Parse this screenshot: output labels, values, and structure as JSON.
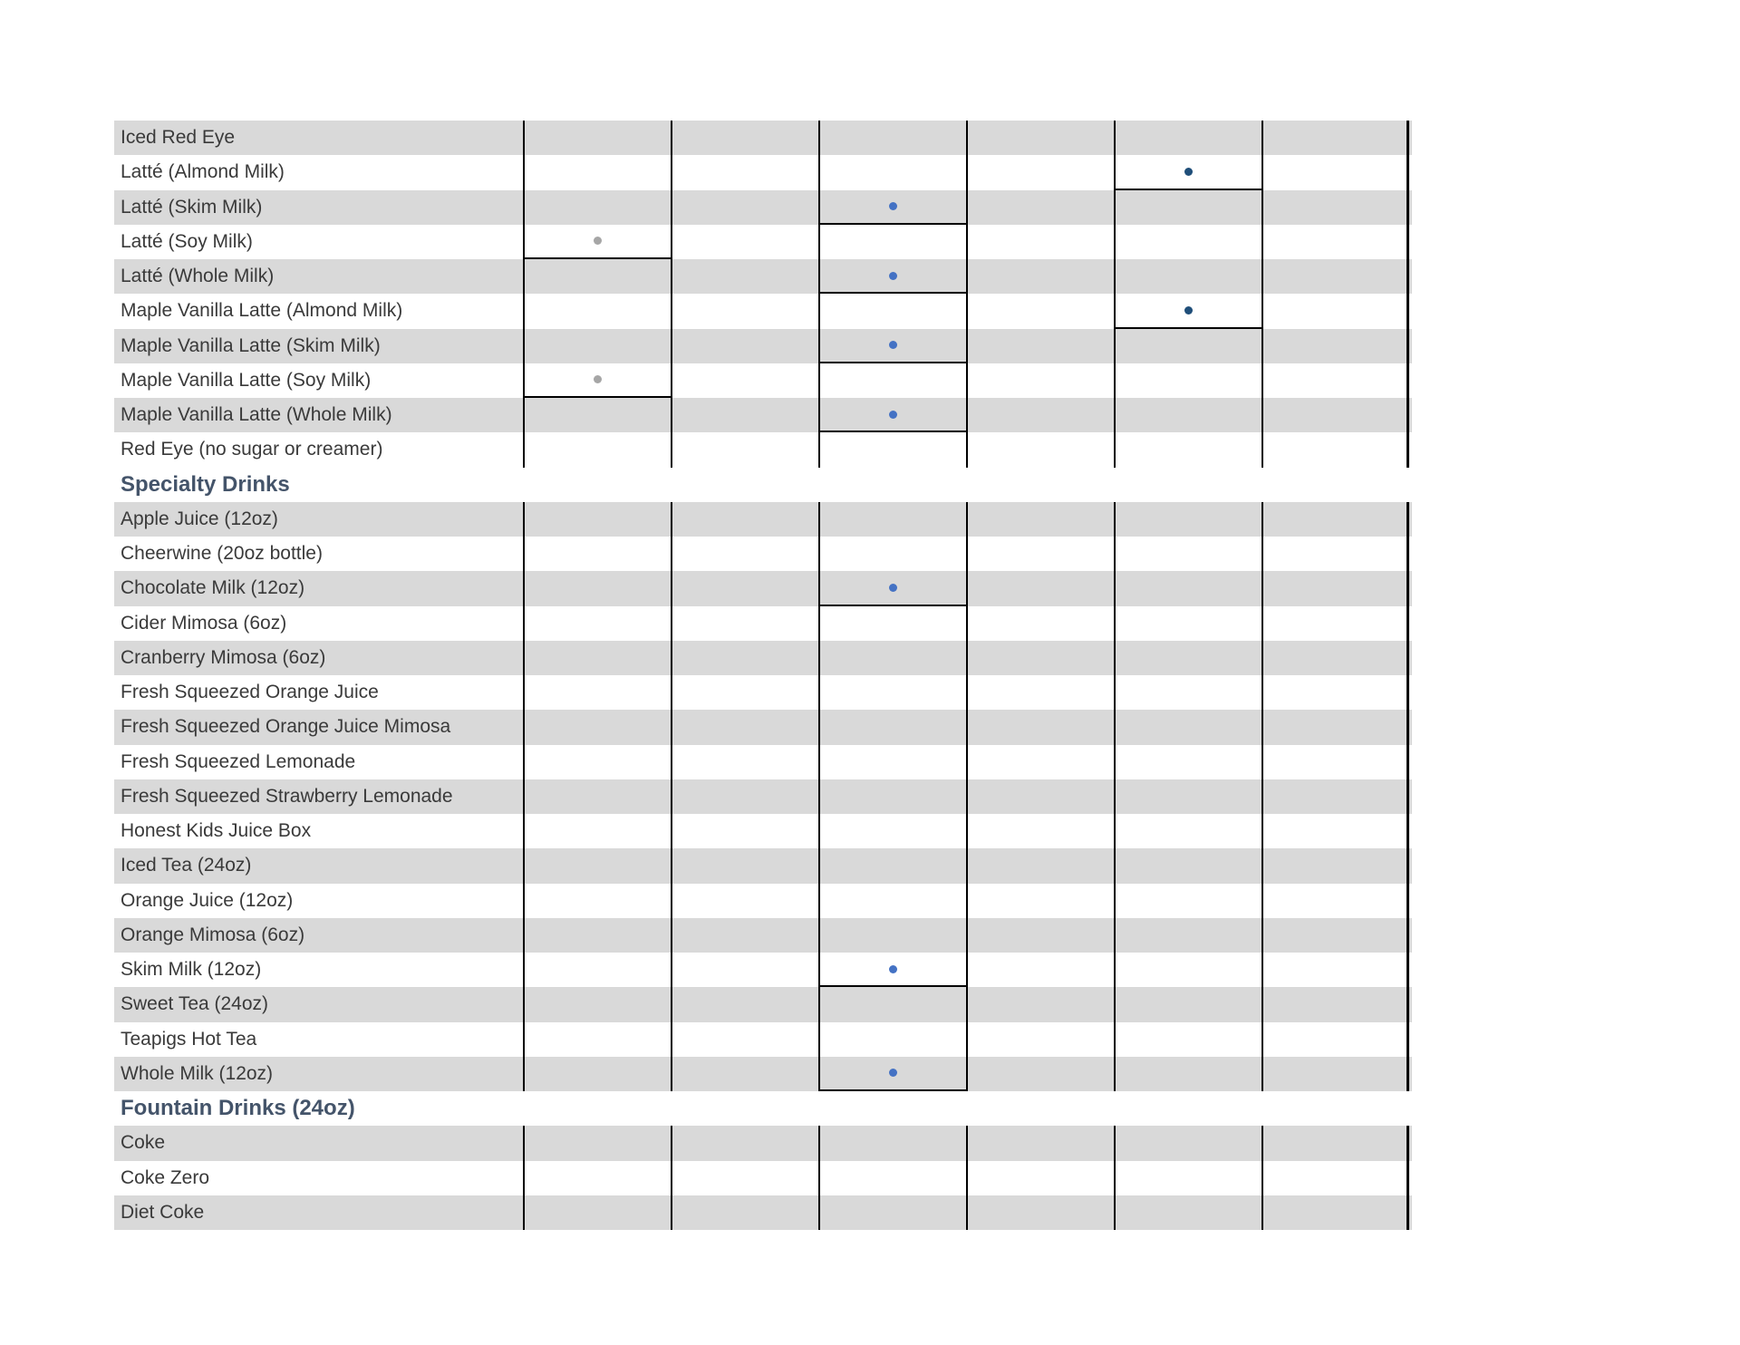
{
  "table": {
    "description": "Drink availability grid (cropped spreadsheet view)",
    "data_column_count": 6,
    "colors": {
      "row_stripe": "#D9D9D9",
      "row_text": "#3A3A3A",
      "section_text": "#44546A",
      "grid_line": "#000000",
      "dot_navy": "#1F4E79",
      "dot_blue": "#4472C4",
      "dot_gray": "#A6A6A6"
    },
    "rows": [
      {
        "label": "Iced Red Eye",
        "type": "item",
        "shaded": true,
        "dot": null
      },
      {
        "label": "Latté (Almond Milk)",
        "type": "item",
        "shaded": false,
        "dot": {
          "column": 4,
          "color": "navy"
        }
      },
      {
        "label": "Latté (Skim Milk)",
        "type": "item",
        "shaded": true,
        "dot": {
          "column": 2,
          "color": "blue"
        }
      },
      {
        "label": "Latté (Soy Milk)",
        "type": "item",
        "shaded": false,
        "dot": {
          "column": 0,
          "color": "gray"
        }
      },
      {
        "label": "Latté (Whole Milk)",
        "type": "item",
        "shaded": true,
        "dot": {
          "column": 2,
          "color": "blue"
        }
      },
      {
        "label": "Maple Vanilla Latte (Almond Milk)",
        "type": "item",
        "shaded": false,
        "dot": {
          "column": 4,
          "color": "navy"
        }
      },
      {
        "label": "Maple Vanilla Latte (Skim Milk)",
        "type": "item",
        "shaded": true,
        "dot": {
          "column": 2,
          "color": "blue"
        }
      },
      {
        "label": "Maple Vanilla Latte (Soy Milk)",
        "type": "item",
        "shaded": false,
        "dot": {
          "column": 0,
          "color": "gray"
        }
      },
      {
        "label": "Maple Vanilla Latte (Whole Milk)",
        "type": "item",
        "shaded": true,
        "dot": {
          "column": 2,
          "color": "blue"
        }
      },
      {
        "label": "Red Eye (no sugar or creamer)",
        "type": "item",
        "shaded": false,
        "dot": null
      },
      {
        "label": "Specialty Drinks",
        "type": "section",
        "shaded": false,
        "dot": null
      },
      {
        "label": "Apple Juice (12oz)",
        "type": "item",
        "shaded": true,
        "dot": null
      },
      {
        "label": "Cheerwine (20oz bottle)",
        "type": "item",
        "shaded": false,
        "dot": null
      },
      {
        "label": "Chocolate Milk (12oz)",
        "type": "item",
        "shaded": true,
        "dot": {
          "column": 2,
          "color": "blue"
        }
      },
      {
        "label": "Cider Mimosa (6oz)",
        "type": "item",
        "shaded": false,
        "dot": null
      },
      {
        "label": "Cranberry Mimosa (6oz)",
        "type": "item",
        "shaded": true,
        "dot": null
      },
      {
        "label": "Fresh Squeezed Orange Juice",
        "type": "item",
        "shaded": false,
        "dot": null
      },
      {
        "label": "Fresh Squeezed Orange Juice Mimosa",
        "type": "item",
        "shaded": true,
        "dot": null
      },
      {
        "label": "Fresh Squeezed Lemonade",
        "type": "item",
        "shaded": false,
        "dot": null
      },
      {
        "label": "Fresh Squeezed Strawberry Lemonade",
        "type": "item",
        "shaded": true,
        "dot": null
      },
      {
        "label": "Honest Kids Juice Box",
        "type": "item",
        "shaded": false,
        "dot": null
      },
      {
        "label": "Iced Tea (24oz)",
        "type": "item",
        "shaded": true,
        "dot": null
      },
      {
        "label": "Orange Juice (12oz)",
        "type": "item",
        "shaded": false,
        "dot": null
      },
      {
        "label": "Orange Mimosa (6oz)",
        "type": "item",
        "shaded": true,
        "dot": null
      },
      {
        "label": "Skim Milk (12oz)",
        "type": "item",
        "shaded": false,
        "dot": {
          "column": 2,
          "color": "blue"
        }
      },
      {
        "label": "Sweet Tea (24oz)",
        "type": "item",
        "shaded": true,
        "dot": null
      },
      {
        "label": "Teapigs Hot Tea",
        "type": "item",
        "shaded": false,
        "dot": null
      },
      {
        "label": "Whole Milk (12oz)",
        "type": "item",
        "shaded": true,
        "dot": {
          "column": 2,
          "color": "blue"
        }
      },
      {
        "label": "Fountain Drinks (24oz)",
        "type": "section",
        "shaded": false,
        "dot": null
      },
      {
        "label": "Coke",
        "type": "item",
        "shaded": true,
        "dot": null
      },
      {
        "label": "Coke Zero",
        "type": "item",
        "shaded": false,
        "dot": null
      },
      {
        "label": "Diet Coke",
        "type": "item",
        "shaded": true,
        "dot": null
      }
    ]
  }
}
